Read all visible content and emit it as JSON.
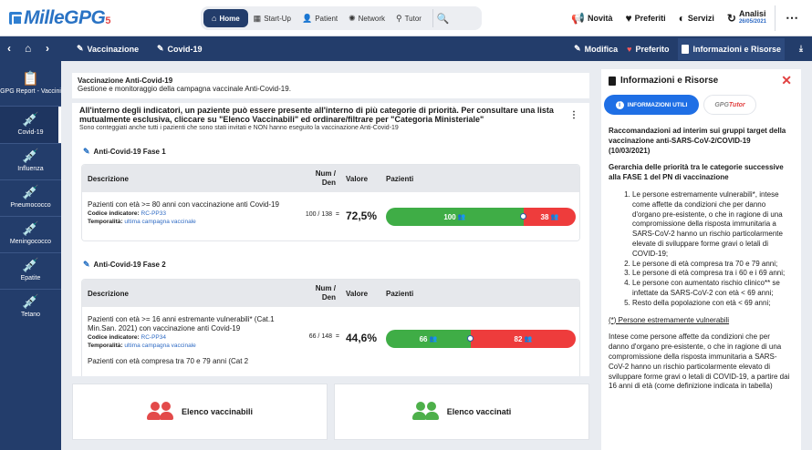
{
  "app": {
    "logo_text": "MilleGPG",
    "logo_suffix": "5"
  },
  "topnav": {
    "items": [
      {
        "label": "Home",
        "icon": "home-icon",
        "active": true
      },
      {
        "label": "Start-Up",
        "icon": "grid-icon",
        "active": false
      },
      {
        "label": "Patient",
        "icon": "user-icon",
        "active": false
      },
      {
        "label": "Network",
        "icon": "network-icon",
        "active": false
      },
      {
        "label": "Tutor",
        "icon": "tutor-icon",
        "active": false
      }
    ],
    "search_icon": "search-icon"
  },
  "topright": {
    "novita": "Novità",
    "preferiti": "Preferiti",
    "servizi": "Servizi",
    "analisi": "Analisi",
    "analisi_date": "26/05/2021"
  },
  "crumbbar": {
    "crumb1": "Vaccinazione",
    "crumb2": "Covid-19",
    "modifica": "Modifica",
    "preferito": "Preferito",
    "info": "Informazioni e Risorse"
  },
  "sidebar": {
    "items": [
      {
        "label": "GPG Report - Vaccini",
        "icon": "report-icon"
      },
      {
        "label": "Covid-19",
        "icon": "syringe-icon",
        "active": true
      },
      {
        "label": "Influenza",
        "icon": "syringe-icon"
      },
      {
        "label": "Pneumococco",
        "icon": "syringe-icon"
      },
      {
        "label": "Meningococco",
        "icon": "syringe-icon"
      },
      {
        "label": "Epatite",
        "icon": "syringe-icon"
      },
      {
        "label": "Tetano",
        "icon": "syringe-icon"
      }
    ]
  },
  "main": {
    "title": "Vaccinazione Anti-Covid-19",
    "subtitle": "Gestione e monitoraggio della campagna vaccinale Anti-Covid-19.",
    "intro": "All'interno degli indicatori, un paziente può essere presente all'interno di più categorie di priorità. Per consultare una lista mutualmente esclusiva, cliccare su \"Elenco Vaccinabili\" ed ordinare/filtrare per \"Categoria Ministeriale\"",
    "note": "Sono conteggiati anche tutti i pazienti che sono stati invitati e NON hanno eseguito la vaccinazione Anti-Covid-19",
    "columns": {
      "desc": "Descrizione",
      "num": "Num /",
      "den": "Den",
      "valore": "Valore",
      "pazienti": "Pazienti"
    },
    "phases": [
      {
        "title": "Anti-Covid-19 Fase 1",
        "rows": [
          {
            "desc": "Pazienti con età >= 80 anni con vaccinazione anti Covid-19",
            "code_label": "Codice indicatore:",
            "code": "RC-PP33",
            "temp_label": "Temporalità:",
            "temp": "ultima campagna vaccinale",
            "ratio": "100 / 138",
            "eq": "=",
            "value": "72,5%",
            "num": 100,
            "rest": 38,
            "num_text": "100",
            "rest_text": "38"
          }
        ]
      },
      {
        "title": "Anti-Covid-19 Fase 2",
        "rows": [
          {
            "desc": "Pazienti con età >= 16 anni estremante vulnerabili* (Cat.1 Min.San. 2021) con vaccinazione anti Covid-19",
            "code_label": "Codice indicatore:",
            "code": "RC-PP34",
            "temp_label": "Temporalità:",
            "temp": "ultima campagna vaccinale",
            "ratio": "66 / 148",
            "eq": "=",
            "value": "44,6%",
            "num": 66,
            "rest": 82,
            "num_text": "66",
            "rest_text": "82"
          }
        ],
        "partial_row": "Pazienti con età compresa tra 70 e 79 anni (Cat 2"
      }
    ],
    "btn_vaccinabili": "Elenco vaccinabili",
    "btn_vaccinati": "Elenco vaccinati"
  },
  "panel": {
    "title": "Informazioni e Risorse",
    "tab_info": "INFORMAZIONI UTILI",
    "tab_tutor_a": "GPG",
    "tab_tutor_b": "Tutor",
    "p1": "Raccomandazioni ad interim sui gruppi target della vaccinazione anti-SARS-CoV-2/COVID-19 (10/03/2021)",
    "p2": "Gerarchia delle priorità tra le categorie successive alla FASE 1 del PN di vaccinazione",
    "list": [
      "Le persone estremamente vulnerabili*, intese come affette da condizioni che per danno d'organo pre-esistente, o che in ragione di una compromissione della risposta immunitaria a SARS-CoV-2 hanno un rischio particolarmente elevate di sviluppare forme gravi o letali di COVID-19;",
      "Le persone di età compresa tra 70 e 79 anni;",
      "Le persone di età compresa tra i 60 e i 69 anni;",
      "Le persone con aumentato rischio clinico** se infettate da SARS-CoV-2 con età < 69 anni;",
      "Resto della popolazione con età < 69 anni;"
    ],
    "p3": "(*) Persone estremamente vulnerabili",
    "p4": "Intese come persone affette da condizioni che per danno d'organo pre-esistente, o che in ragione di una compromissione della risposta immunitaria a SARS-CoV-2 hanno un rischio particolarmente elevato di sviluppare forme gravi o letali di COVID-19, a partire dai 16 anni di età (come definizione indicata in tabella)"
  },
  "colors": {
    "navy": "#233d6b",
    "green": "#3fad46",
    "red": "#ee3c3c",
    "blue": "#1f6fe5"
  }
}
